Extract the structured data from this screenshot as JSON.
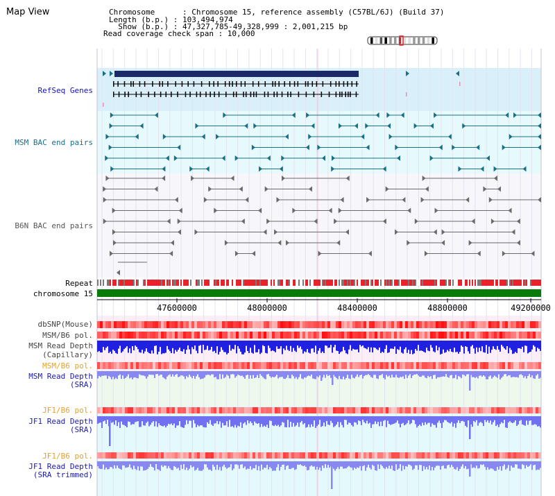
{
  "title": "Map View",
  "info": {
    "lines": [
      "Chromosome      : Chromosome 15, reference assembly (C57BL/6J) (Build 37)",
      "Length (b.p.) : 103,494,974",
      "  Show (b.p.) : 47,327,785-49,328,999 : 2,001,215 bp",
      "Read coverage check span : 10,000"
    ]
  },
  "colors": {
    "genes_bg": "#d9f0fb",
    "bac_bg": "#e6fafb",
    "grey_bg": "#f6f6fb",
    "pink_bg": "#fbeef7",
    "green_bg": "#eef9ee",
    "cyan_bg": "#e3f9fb",
    "accent_red": "#e8232c",
    "navy": "#1a2a68",
    "teal": "#1a6e86",
    "blue": "#2b2be6"
  },
  "tracks": {
    "refseq": "RefSeq Genes",
    "msm_bac": "MSM BAC end pairs",
    "b6n_bac": "B6N BAC end pairs",
    "repeat": "Repeat",
    "chromosome": "chromosome 15",
    "dbsnp": "dbSNP(Mouse)",
    "msm_b6_pol_1": "MSM/B6 pol.",
    "msm_read_depth_cap_1": "MSM Read Depth",
    "msm_read_depth_cap_2": "(Capillary)",
    "msm_b6_pol_2": "MSM/B6 pol.",
    "msm_read_depth_sra_1": "MSM Read Depth",
    "msm_read_depth_sra_2": "(SRA)",
    "jf1_b6_pol_1": "JF1/B6 pol.",
    "jf1_read_depth_sra_1": "JF1 Read Depth",
    "jf1_read_depth_sra_2": "(SRA)",
    "jf1_b6_pol_2": "JF1/B6 pol.",
    "jf1_read_depth_trim_1": "JF1 Read Depth",
    "jf1_read_depth_trim_2": "(SRA trimmed)"
  },
  "axis": {
    "ticks": [
      "47600000",
      "48000000",
      "48400000",
      "48800000",
      "49200000"
    ]
  }
}
